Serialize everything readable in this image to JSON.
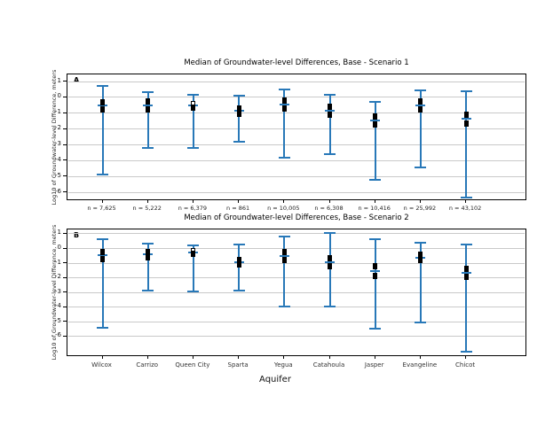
{
  "figure": {
    "background": "#ffffff",
    "accent_blue": "#2878b8",
    "gridline_color": "#c9c9c9",
    "x_axis_title": "Aquifer"
  },
  "chart_data": [
    {
      "type": "boxplot",
      "panel_label": "A",
      "title": "Median of Groundwater-level Differences, Base - Scenario 1",
      "ylabel": "Log10 of Groundwater-level Difference, meters",
      "yticks": [
        1,
        0,
        -1,
        -2,
        -3,
        -4,
        -5,
        -6
      ],
      "ylim": [
        -6.55,
        1.45
      ],
      "grid": true,
      "legend_position": "none",
      "categories": [
        "Wilcox",
        "Carrizo",
        "Queen City",
        "Sparta",
        "Yegua",
        "Catahoula",
        "Jasper",
        "Evangeline",
        "Chicot"
      ],
      "sample_sizes": [
        "n = 7,625",
        "n = 5,222",
        "n = 6,379",
        "n = 861",
        "n = 10,005",
        "n = 6,308",
        "n = 10,416",
        "n = 25,992",
        "n = 43,102"
      ],
      "series": [
        {
          "name": "Wilcox",
          "high": 0.75,
          "q75": -0.3,
          "median": -0.52,
          "q25": -0.78,
          "low": -4.85,
          "open_q75": false
        },
        {
          "name": "Carrizo",
          "high": 0.35,
          "q75": -0.28,
          "median": -0.5,
          "q25": -0.76,
          "low": -3.2,
          "open_q75": false
        },
        {
          "name": "Queen City",
          "high": 0.15,
          "q75": -0.4,
          "median": -0.52,
          "q25": -0.66,
          "low": -3.2,
          "open_q75": true
        },
        {
          "name": "Sparta",
          "high": 0.1,
          "q75": -0.68,
          "median": -0.85,
          "q25": -1.05,
          "low": -2.8,
          "open_q75": false
        },
        {
          "name": "Yegua",
          "high": 0.5,
          "q75": -0.18,
          "median": -0.45,
          "q25": -0.72,
          "low": -3.8,
          "open_q75": false
        },
        {
          "name": "Catahoula",
          "high": 0.15,
          "q75": -0.58,
          "median": -0.85,
          "q25": -1.12,
          "low": -3.6,
          "open_q75": false
        },
        {
          "name": "Jasper",
          "high": -0.28,
          "q75": -1.18,
          "median": -1.45,
          "q25": -1.72,
          "low": -5.2,
          "open_q75": false
        },
        {
          "name": "Evangeline",
          "high": 0.45,
          "q75": -0.25,
          "median": -0.5,
          "q25": -0.75,
          "low": -4.45,
          "open_q75": false
        },
        {
          "name": "Chicot",
          "high": 0.4,
          "q75": -1.1,
          "median": -1.35,
          "q25": -1.64,
          "low": -6.3,
          "open_q75": false
        }
      ]
    },
    {
      "type": "boxplot",
      "panel_label": "B",
      "title": "Median of Groundwater-level Differences, Base - Scenario 2",
      "ylabel": "Log10 of Groundwater-level Difference, meters",
      "xlabel": "Aquifer",
      "yticks": [
        1,
        0,
        -1,
        -2,
        -3,
        -4,
        -5,
        -6
      ],
      "ylim": [
        -7.4,
        1.3
      ],
      "grid": true,
      "legend_position": "none",
      "categories": [
        "Wilcox",
        "Carrizo",
        "Queen City",
        "Sparta",
        "Yegua",
        "Catahoula",
        "Jasper",
        "Evangeline",
        "Chicot"
      ],
      "series": [
        {
          "name": "Wilcox",
          "high": 0.62,
          "q75": -0.25,
          "median": -0.45,
          "q25": -0.74,
          "low": -5.4,
          "open_q75": false
        },
        {
          "name": "Carrizo",
          "high": 0.33,
          "q75": -0.25,
          "median": -0.41,
          "q25": -0.6,
          "low": -2.86,
          "open_q75": false
        },
        {
          "name": "Queen City",
          "high": 0.21,
          "q75": -0.17,
          "median": -0.25,
          "q25": -0.35,
          "low": -2.9,
          "open_q75": true
        },
        {
          "name": "Sparta",
          "high": 0.27,
          "q75": -0.78,
          "median": -0.92,
          "q25": -1.1,
          "low": -2.86,
          "open_q75": false
        },
        {
          "name": "Yegua",
          "high": 0.82,
          "q75": -0.27,
          "median": -0.49,
          "q25": -0.76,
          "low": -3.97,
          "open_q75": false
        },
        {
          "name": "Catahoula",
          "high": 1.04,
          "q75": -0.68,
          "median": -0.94,
          "q25": -1.2,
          "low": -3.97,
          "open_q75": false
        },
        {
          "name": "Jasper",
          "high": 0.64,
          "q75": -1.18,
          "median": -1.55,
          "q25": -1.85,
          "low": -5.49,
          "open_q75": false
        },
        {
          "name": "Evangeline",
          "high": 0.37,
          "q75": -0.43,
          "median": -0.62,
          "q25": -0.8,
          "low": -5.02,
          "open_q75": false
        },
        {
          "name": "Chicot",
          "high": 0.27,
          "q75": -1.4,
          "median": -1.69,
          "q25": -1.95,
          "low": -7.04,
          "open_q75": false
        }
      ]
    }
  ]
}
